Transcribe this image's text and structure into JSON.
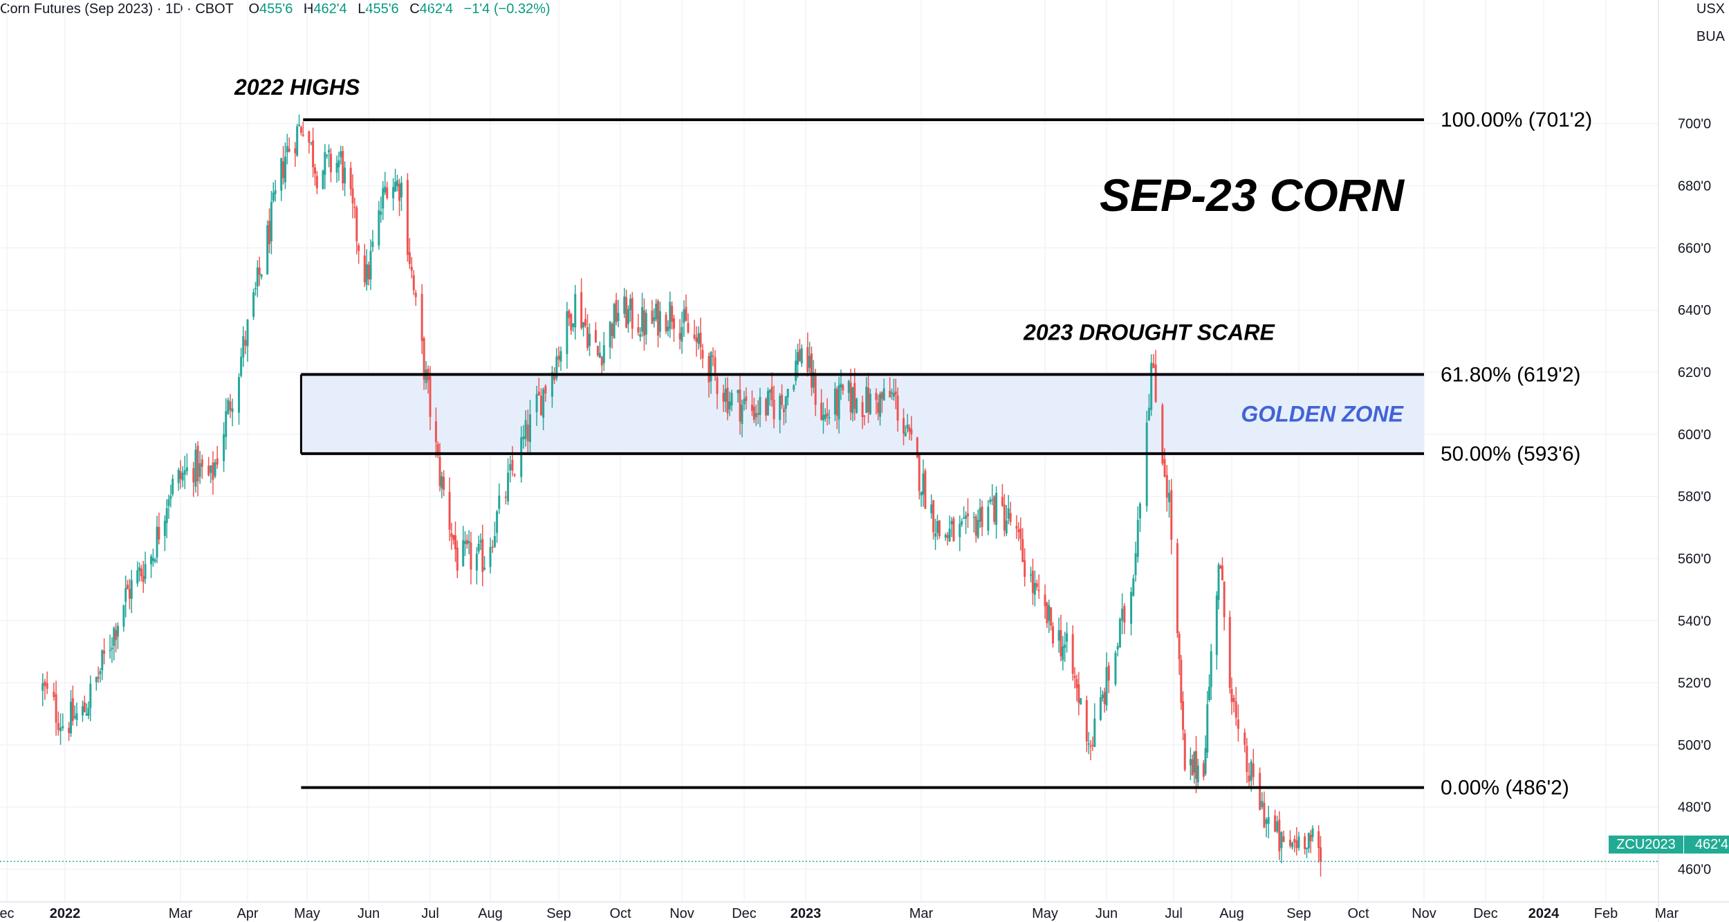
{
  "legend": {
    "symbol": "Corn Futures (Sep 2023) · 1D · CBOT",
    "open_label": "O",
    "open": "455'6",
    "high_label": "H",
    "high": "462'4",
    "low_label": "L",
    "low": "455'6",
    "close_label": "C",
    "close": "462'4",
    "change": "−1'4 (−0.32%)"
  },
  "units": [
    "USX",
    "BUA"
  ],
  "price_tag": {
    "symbol": "ZCU2023",
    "price": "462'4"
  },
  "chart_data": {
    "type": "candlestick",
    "title": "SEP-23 CORN",
    "x_tick_labels": [
      "ec",
      "2022",
      "Mar",
      "Apr",
      "May",
      "Jun",
      "Jul",
      "Aug",
      "Sep",
      "Oct",
      "Nov",
      "Dec",
      "2023",
      "Mar",
      "May",
      "Jun",
      "Jul",
      "Aug",
      "Sep",
      "Oct",
      "Nov",
      "Dec",
      "2024",
      "Feb",
      "Mar"
    ],
    "y_tick_labels": [
      "460'0",
      "480'0",
      "500'0",
      "520'0",
      "540'0",
      "560'0",
      "580'0",
      "600'0",
      "620'0",
      "640'0",
      "660'0",
      "680'0",
      "700'0"
    ],
    "y_ticks": [
      460,
      480,
      500,
      520,
      540,
      560,
      580,
      600,
      620,
      640,
      660,
      680,
      700
    ],
    "ylim": [
      453,
      728
    ],
    "grid": true,
    "up_color": "#26a69a",
    "down_color": "#ef5350",
    "keypoints": [
      {
        "date": "2021-12-22",
        "price": 518
      },
      {
        "date": "2021-12-31",
        "price": 507
      },
      {
        "date": "2022-01-10",
        "price": 510
      },
      {
        "date": "2022-01-18",
        "price": 522
      },
      {
        "date": "2022-02-01",
        "price": 548
      },
      {
        "date": "2022-02-15",
        "price": 562
      },
      {
        "date": "2022-02-23",
        "price": 582
      },
      {
        "date": "2022-03-07",
        "price": 590
      },
      {
        "date": "2022-03-15",
        "price": 585
      },
      {
        "date": "2022-04-05",
        "price": 645
      },
      {
        "date": "2022-04-20",
        "price": 690
      },
      {
        "date": "2022-04-29",
        "price": 701
      },
      {
        "date": "2022-05-06",
        "price": 685
      },
      {
        "date": "2022-05-18",
        "price": 688
      },
      {
        "date": "2022-05-31",
        "price": 650
      },
      {
        "date": "2022-06-10",
        "price": 682
      },
      {
        "date": "2022-06-17",
        "price": 680
      },
      {
        "date": "2022-06-24",
        "price": 640
      },
      {
        "date": "2022-07-05",
        "price": 590
      },
      {
        "date": "2022-07-15",
        "price": 560
      },
      {
        "date": "2022-07-29",
        "price": 560
      },
      {
        "date": "2022-08-12",
        "price": 590
      },
      {
        "date": "2022-08-31",
        "price": 625
      },
      {
        "date": "2022-09-09",
        "price": 643
      },
      {
        "date": "2022-09-20",
        "price": 625
      },
      {
        "date": "2022-09-30",
        "price": 640
      },
      {
        "date": "2022-10-14",
        "price": 635
      },
      {
        "date": "2022-10-27",
        "price": 640
      },
      {
        "date": "2022-11-07",
        "price": 630
      },
      {
        "date": "2022-11-23",
        "price": 612
      },
      {
        "date": "2022-12-05",
        "price": 608
      },
      {
        "date": "2022-12-20",
        "price": 610
      },
      {
        "date": "2022-12-30",
        "price": 628
      },
      {
        "date": "2023-01-10",
        "price": 605
      },
      {
        "date": "2023-01-20",
        "price": 612
      },
      {
        "date": "2023-02-03",
        "price": 610
      },
      {
        "date": "2023-02-15",
        "price": 612
      },
      {
        "date": "2023-02-24",
        "price": 595
      },
      {
        "date": "2023-03-10",
        "price": 568
      },
      {
        "date": "2023-03-24",
        "price": 568
      },
      {
        "date": "2023-04-03",
        "price": 578
      },
      {
        "date": "2023-04-14",
        "price": 572
      },
      {
        "date": "2023-04-28",
        "price": 545
      },
      {
        "date": "2023-05-12",
        "price": 530
      },
      {
        "date": "2023-05-24",
        "price": 500
      },
      {
        "date": "2023-06-02",
        "price": 522
      },
      {
        "date": "2023-06-12",
        "price": 550
      },
      {
        "date": "2023-06-21",
        "price": 622
      },
      {
        "date": "2023-06-29",
        "price": 578
      },
      {
        "date": "2023-07-07",
        "price": 490
      },
      {
        "date": "2023-07-17",
        "price": 495
      },
      {
        "date": "2023-07-25",
        "price": 560
      },
      {
        "date": "2023-08-04",
        "price": 500
      },
      {
        "date": "2023-08-16",
        "price": 478
      },
      {
        "date": "2023-08-25",
        "price": 466
      },
      {
        "date": "2023-09-05",
        "price": 472
      },
      {
        "date": "2023-09-12",
        "price": 462.5
      }
    ],
    "fib_levels": [
      {
        "label": "100.00% (701'2)",
        "value": 701.25,
        "start_date": "2022-04-29"
      },
      {
        "label": "61.80% (619'2)",
        "value": 619.25,
        "start_date": "2022-04-28"
      },
      {
        "label": "50.00% (593'6)",
        "value": 593.75,
        "start_date": "2022-04-28"
      },
      {
        "label": "0.00% (486'2)",
        "value": 486.25,
        "start_date": "2022-04-28"
      }
    ],
    "fib_end_date": "2023-11-01",
    "zone": {
      "label": "GOLDEN ZONE",
      "from": 593.75,
      "to": 619.25,
      "fill": "#e6eefb",
      "text_color": "#4263d6"
    },
    "annotations": [
      {
        "text": "2022 HIGHS",
        "date": "2022-04-26",
        "price": 712
      },
      {
        "text": "2023 DROUGHT SCARE",
        "date": "2023-06-20",
        "price": 633
      }
    ],
    "last_price": 462.5
  }
}
